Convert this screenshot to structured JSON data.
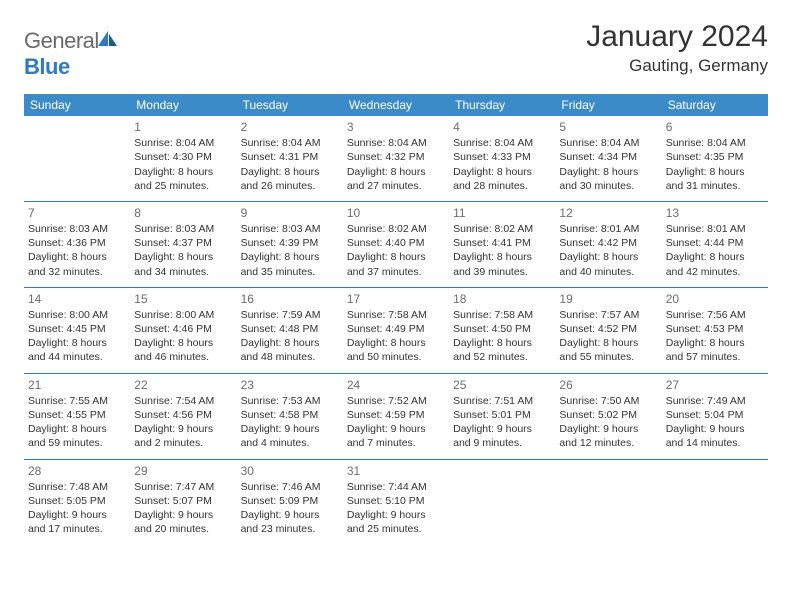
{
  "brand": {
    "general": "General",
    "blue": "Blue"
  },
  "title": "January 2024",
  "location": "Gauting, Germany",
  "colors": {
    "header_bg": "#3b8bc9",
    "border": "#2f7ac0",
    "text": "#333333",
    "logo_gray": "#6a6a6a",
    "logo_blue": "#2f7ac0",
    "daynum": "#6d6d6d",
    "background": "#ffffff"
  },
  "weekdays": [
    "Sunday",
    "Monday",
    "Tuesday",
    "Wednesday",
    "Thursday",
    "Friday",
    "Saturday"
  ],
  "weeks": [
    [
      null,
      {
        "n": "1",
        "sr": "Sunrise: 8:04 AM",
        "ss": "Sunset: 4:30 PM",
        "d1": "Daylight: 8 hours",
        "d2": "and 25 minutes."
      },
      {
        "n": "2",
        "sr": "Sunrise: 8:04 AM",
        "ss": "Sunset: 4:31 PM",
        "d1": "Daylight: 8 hours",
        "d2": "and 26 minutes."
      },
      {
        "n": "3",
        "sr": "Sunrise: 8:04 AM",
        "ss": "Sunset: 4:32 PM",
        "d1": "Daylight: 8 hours",
        "d2": "and 27 minutes."
      },
      {
        "n": "4",
        "sr": "Sunrise: 8:04 AM",
        "ss": "Sunset: 4:33 PM",
        "d1": "Daylight: 8 hours",
        "d2": "and 28 minutes."
      },
      {
        "n": "5",
        "sr": "Sunrise: 8:04 AM",
        "ss": "Sunset: 4:34 PM",
        "d1": "Daylight: 8 hours",
        "d2": "and 30 minutes."
      },
      {
        "n": "6",
        "sr": "Sunrise: 8:04 AM",
        "ss": "Sunset: 4:35 PM",
        "d1": "Daylight: 8 hours",
        "d2": "and 31 minutes."
      }
    ],
    [
      {
        "n": "7",
        "sr": "Sunrise: 8:03 AM",
        "ss": "Sunset: 4:36 PM",
        "d1": "Daylight: 8 hours",
        "d2": "and 32 minutes."
      },
      {
        "n": "8",
        "sr": "Sunrise: 8:03 AM",
        "ss": "Sunset: 4:37 PM",
        "d1": "Daylight: 8 hours",
        "d2": "and 34 minutes."
      },
      {
        "n": "9",
        "sr": "Sunrise: 8:03 AM",
        "ss": "Sunset: 4:39 PM",
        "d1": "Daylight: 8 hours",
        "d2": "and 35 minutes."
      },
      {
        "n": "10",
        "sr": "Sunrise: 8:02 AM",
        "ss": "Sunset: 4:40 PM",
        "d1": "Daylight: 8 hours",
        "d2": "and 37 minutes."
      },
      {
        "n": "11",
        "sr": "Sunrise: 8:02 AM",
        "ss": "Sunset: 4:41 PM",
        "d1": "Daylight: 8 hours",
        "d2": "and 39 minutes."
      },
      {
        "n": "12",
        "sr": "Sunrise: 8:01 AM",
        "ss": "Sunset: 4:42 PM",
        "d1": "Daylight: 8 hours",
        "d2": "and 40 minutes."
      },
      {
        "n": "13",
        "sr": "Sunrise: 8:01 AM",
        "ss": "Sunset: 4:44 PM",
        "d1": "Daylight: 8 hours",
        "d2": "and 42 minutes."
      }
    ],
    [
      {
        "n": "14",
        "sr": "Sunrise: 8:00 AM",
        "ss": "Sunset: 4:45 PM",
        "d1": "Daylight: 8 hours",
        "d2": "and 44 minutes."
      },
      {
        "n": "15",
        "sr": "Sunrise: 8:00 AM",
        "ss": "Sunset: 4:46 PM",
        "d1": "Daylight: 8 hours",
        "d2": "and 46 minutes."
      },
      {
        "n": "16",
        "sr": "Sunrise: 7:59 AM",
        "ss": "Sunset: 4:48 PM",
        "d1": "Daylight: 8 hours",
        "d2": "and 48 minutes."
      },
      {
        "n": "17",
        "sr": "Sunrise: 7:58 AM",
        "ss": "Sunset: 4:49 PM",
        "d1": "Daylight: 8 hours",
        "d2": "and 50 minutes."
      },
      {
        "n": "18",
        "sr": "Sunrise: 7:58 AM",
        "ss": "Sunset: 4:50 PM",
        "d1": "Daylight: 8 hours",
        "d2": "and 52 minutes."
      },
      {
        "n": "19",
        "sr": "Sunrise: 7:57 AM",
        "ss": "Sunset: 4:52 PM",
        "d1": "Daylight: 8 hours",
        "d2": "and 55 minutes."
      },
      {
        "n": "20",
        "sr": "Sunrise: 7:56 AM",
        "ss": "Sunset: 4:53 PM",
        "d1": "Daylight: 8 hours",
        "d2": "and 57 minutes."
      }
    ],
    [
      {
        "n": "21",
        "sr": "Sunrise: 7:55 AM",
        "ss": "Sunset: 4:55 PM",
        "d1": "Daylight: 8 hours",
        "d2": "and 59 minutes."
      },
      {
        "n": "22",
        "sr": "Sunrise: 7:54 AM",
        "ss": "Sunset: 4:56 PM",
        "d1": "Daylight: 9 hours",
        "d2": "and 2 minutes."
      },
      {
        "n": "23",
        "sr": "Sunrise: 7:53 AM",
        "ss": "Sunset: 4:58 PM",
        "d1": "Daylight: 9 hours",
        "d2": "and 4 minutes."
      },
      {
        "n": "24",
        "sr": "Sunrise: 7:52 AM",
        "ss": "Sunset: 4:59 PM",
        "d1": "Daylight: 9 hours",
        "d2": "and 7 minutes."
      },
      {
        "n": "25",
        "sr": "Sunrise: 7:51 AM",
        "ss": "Sunset: 5:01 PM",
        "d1": "Daylight: 9 hours",
        "d2": "and 9 minutes."
      },
      {
        "n": "26",
        "sr": "Sunrise: 7:50 AM",
        "ss": "Sunset: 5:02 PM",
        "d1": "Daylight: 9 hours",
        "d2": "and 12 minutes."
      },
      {
        "n": "27",
        "sr": "Sunrise: 7:49 AM",
        "ss": "Sunset: 5:04 PM",
        "d1": "Daylight: 9 hours",
        "d2": "and 14 minutes."
      }
    ],
    [
      {
        "n": "28",
        "sr": "Sunrise: 7:48 AM",
        "ss": "Sunset: 5:05 PM",
        "d1": "Daylight: 9 hours",
        "d2": "and 17 minutes."
      },
      {
        "n": "29",
        "sr": "Sunrise: 7:47 AM",
        "ss": "Sunset: 5:07 PM",
        "d1": "Daylight: 9 hours",
        "d2": "and 20 minutes."
      },
      {
        "n": "30",
        "sr": "Sunrise: 7:46 AM",
        "ss": "Sunset: 5:09 PM",
        "d1": "Daylight: 9 hours",
        "d2": "and 23 minutes."
      },
      {
        "n": "31",
        "sr": "Sunrise: 7:44 AM",
        "ss": "Sunset: 5:10 PM",
        "d1": "Daylight: 9 hours",
        "d2": "and 25 minutes."
      },
      null,
      null,
      null
    ]
  ]
}
